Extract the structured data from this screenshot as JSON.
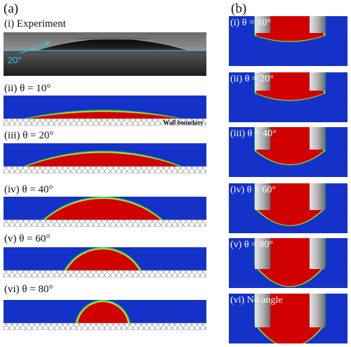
{
  "figure": {
    "part_a": {
      "header": "(a)",
      "experiment": {
        "label": "(i) Experiment",
        "angle_text": "20°"
      },
      "wall_label": "Wall boundary",
      "simulations": [
        {
          "label": "(ii) θ = 10°",
          "angle_deg": 10
        },
        {
          "label": "(iii) θ = 20°",
          "angle_deg": 20
        },
        {
          "label": "(iv) θ = 40°",
          "angle_deg": 40
        },
        {
          "label": "(v) θ = 60°",
          "angle_deg": 60
        },
        {
          "label": "(vi) θ = 80°",
          "angle_deg": 80
        }
      ]
    },
    "part_b": {
      "header": "(b)",
      "panels": [
        {
          "label": "(i) θ = 10°"
        },
        {
          "label": "(ii) θ = 20°"
        },
        {
          "label": "(iii) θ = 40°"
        },
        {
          "label": "(iv) θ = 60°"
        },
        {
          "label": "(v) θ = 80°"
        },
        {
          "label": "(vi) No angle"
        }
      ]
    },
    "colors": {
      "fluid": "#1432c8",
      "droplet": "#d10000",
      "interface_mid": "#e6e600",
      "interface_outer": "#1dd36a",
      "wall_hatch": "#8a8a8a"
    }
  }
}
